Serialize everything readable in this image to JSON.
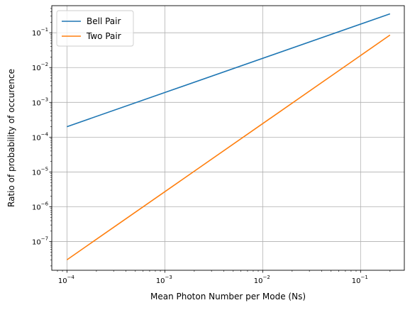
{
  "chart_data": {
    "type": "line",
    "xscale": "log",
    "yscale": "log",
    "xlim": [
      7e-05,
      0.28
    ],
    "ylim": [
      1.5e-08,
      0.6
    ],
    "xlabel": "Mean Photon Number per Mode (Ns)",
    "ylabel": "Ratio of probability of occurence",
    "grid": true,
    "legend_position": "upper-left",
    "x_ticks": [
      {
        "value": 0.0001,
        "base": "10",
        "exp": "−4"
      },
      {
        "value": 0.001,
        "base": "10",
        "exp": "−3"
      },
      {
        "value": 0.01,
        "base": "10",
        "exp": "−2"
      },
      {
        "value": 0.1,
        "base": "10",
        "exp": "−1"
      }
    ],
    "y_ticks": [
      {
        "value": 1e-07,
        "base": "10",
        "exp": "−7"
      },
      {
        "value": 1e-06,
        "base": "10",
        "exp": "−6"
      },
      {
        "value": 1e-05,
        "base": "10",
        "exp": "−5"
      },
      {
        "value": 0.0001,
        "base": "10",
        "exp": "−4"
      },
      {
        "value": 0.001,
        "base": "10",
        "exp": "−3"
      },
      {
        "value": 0.01,
        "base": "10",
        "exp": "−2"
      },
      {
        "value": 0.1,
        "base": "10",
        "exp": "−1"
      }
    ],
    "series": [
      {
        "name": "Bell Pair",
        "color": "#1f77b4",
        "x": [
          0.0001,
          0.2
        ],
        "y": [
          0.0002,
          0.35
        ]
      },
      {
        "name": "Two Pair",
        "color": "#ff7f0e",
        "x": [
          0.0001,
          0.2
        ],
        "y": [
          3e-08,
          0.086
        ]
      }
    ]
  }
}
